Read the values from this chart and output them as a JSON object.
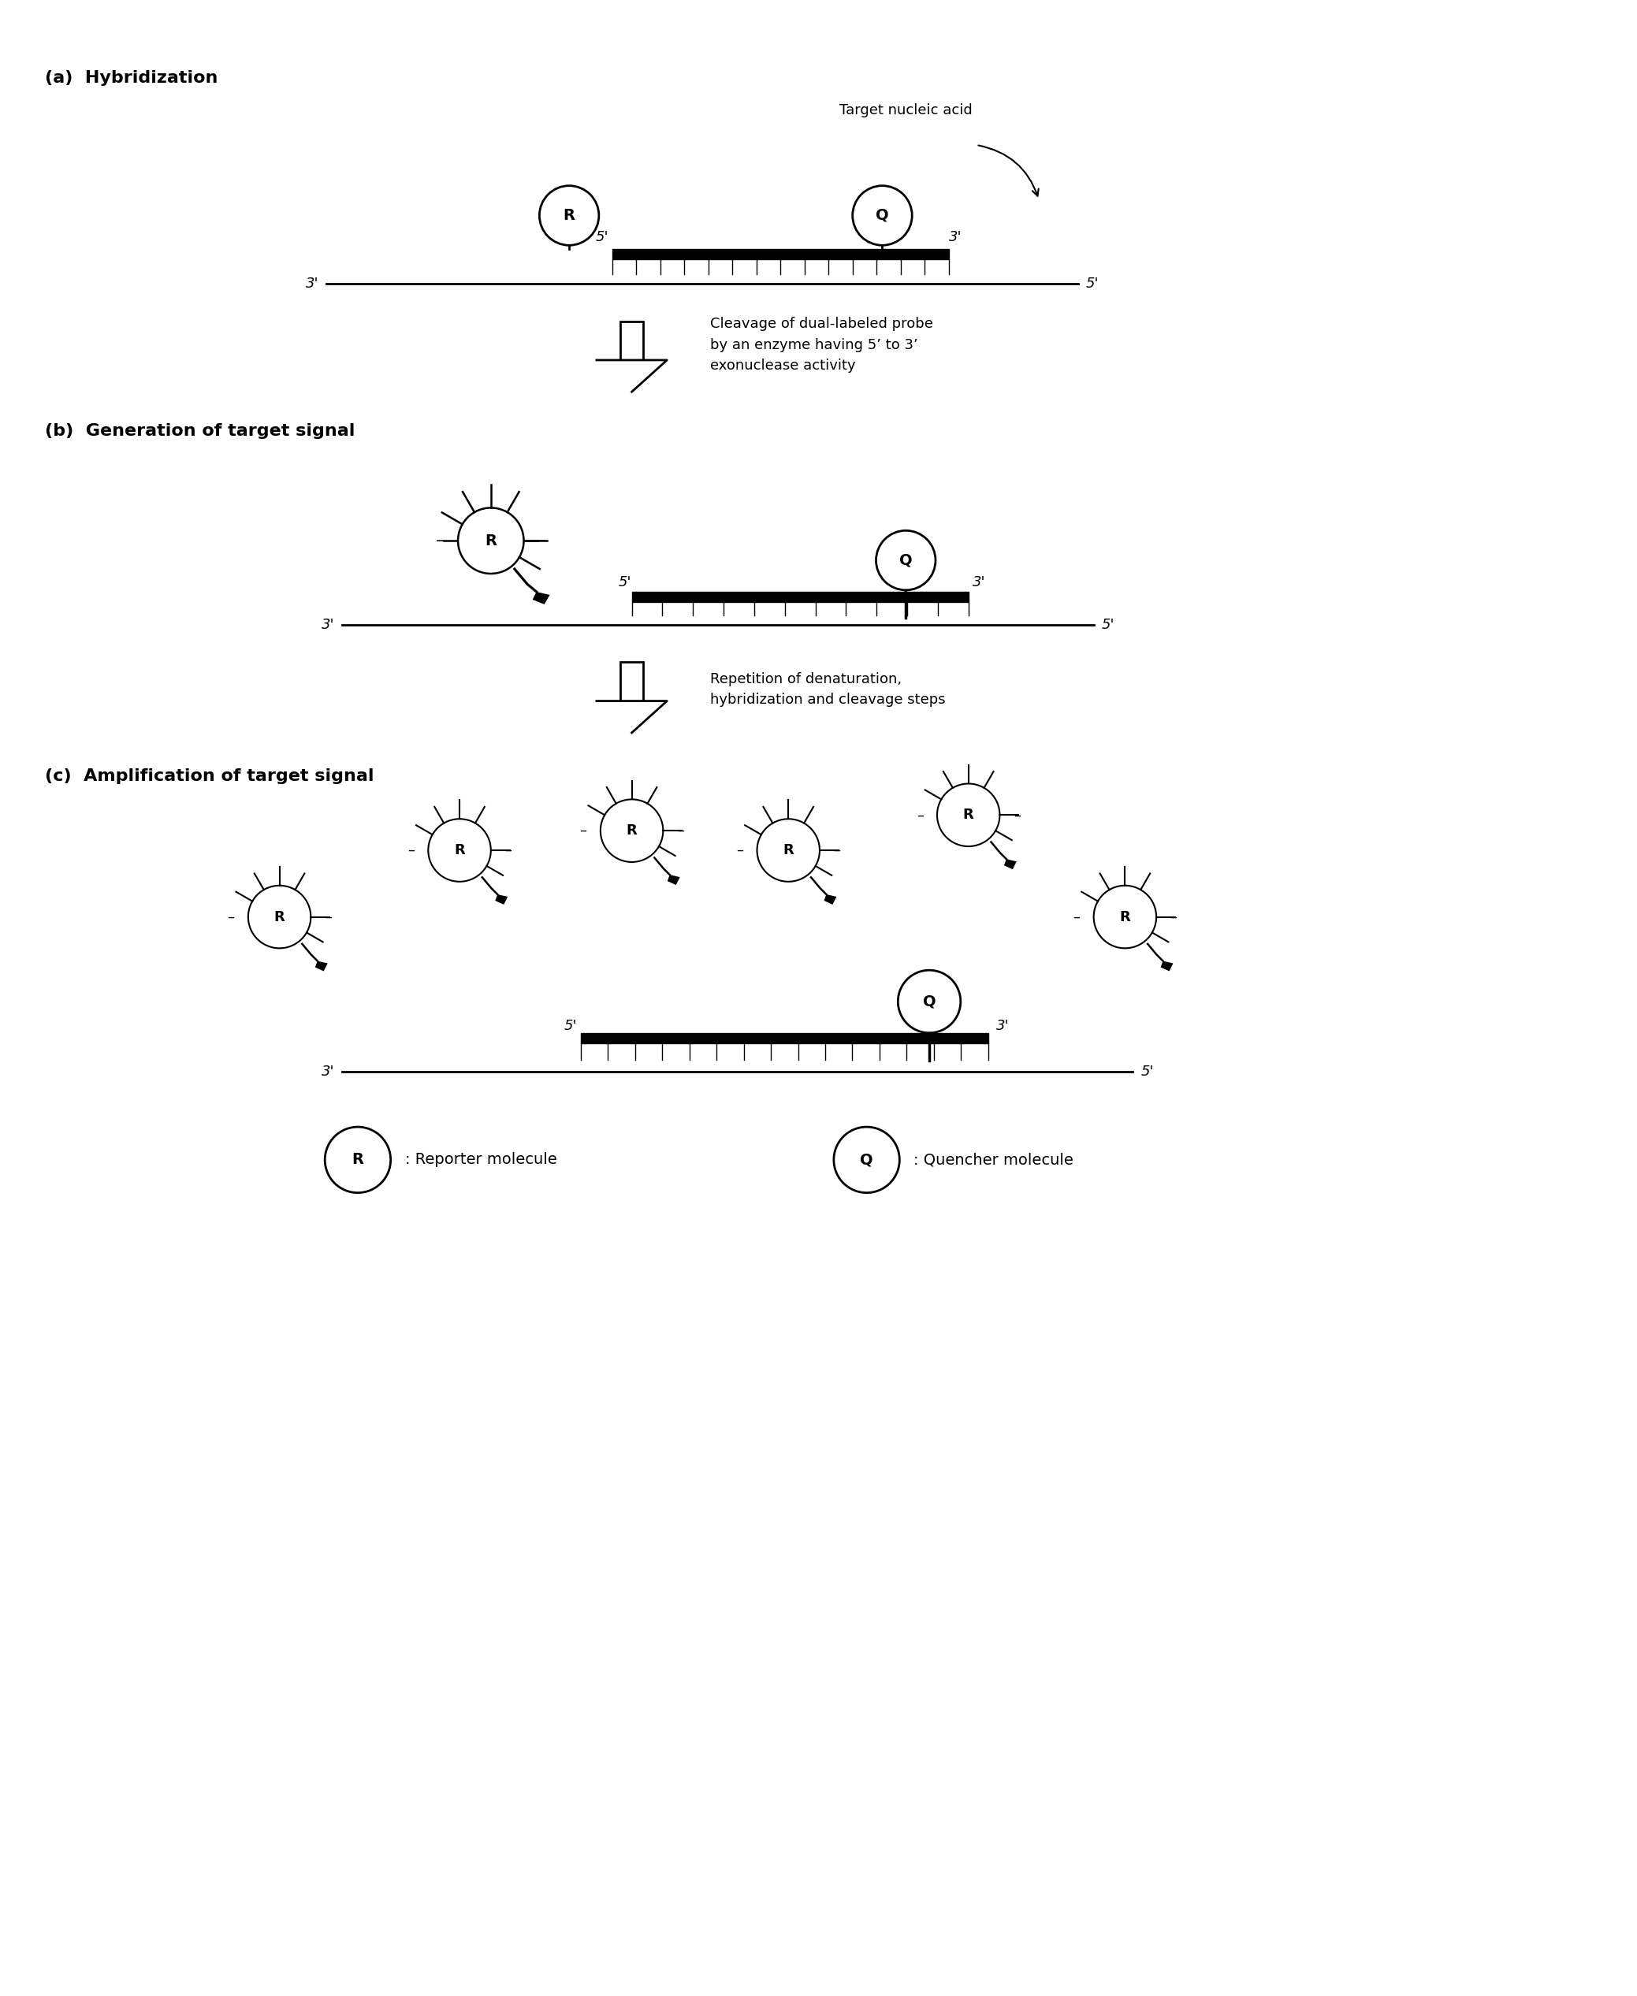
{
  "bg_color": "#ffffff",
  "fig_width": 20.77,
  "fig_height": 25.33,
  "section_a_label": "(a)  Hybridization",
  "section_b_label": "(b)  Generation of target signal",
  "section_c_label": "(c)  Amplification of target signal",
  "arrow1_text": "Cleavage of dual-labeled probe\nby an enzyme having 5’ to 3’\nexonuclease activity",
  "arrow2_text": "Repetition of denaturation,\nhybridization and cleavage steps",
  "legend_R": "(R) : Reporter molecule",
  "legend_Q": "(Q) : Quencher molecule",
  "target_nucleic_acid": "Target nucleic acid"
}
